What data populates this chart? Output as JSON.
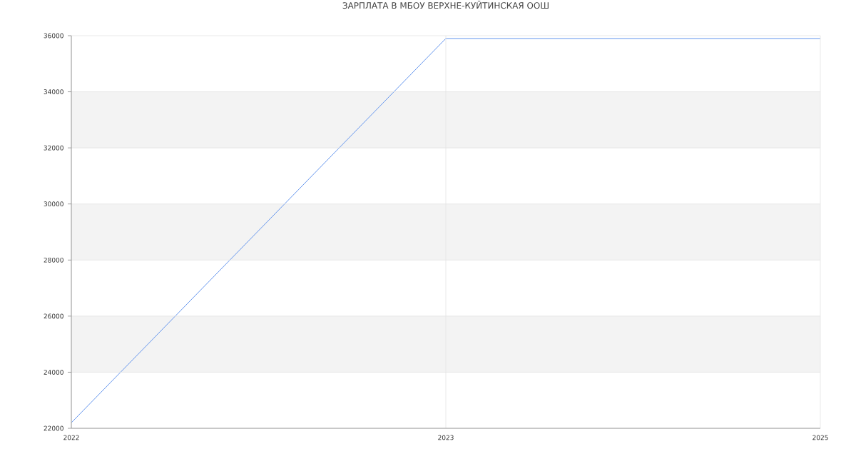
{
  "chart_data": {
    "type": "line",
    "title": "ЗАРПЛАТА В МБОУ ВЕРХНЕ-КУЙТИНСКАЯ ООШ",
    "categories": [
      "2022",
      "2023",
      "2025"
    ],
    "values": [
      22200,
      35900,
      35900
    ],
    "color": "#6495ed",
    "ylim": [
      22000,
      36000
    ],
    "yticks": [
      22000,
      24000,
      26000,
      28000,
      30000,
      32000,
      34000,
      36000
    ],
    "grid": true
  }
}
